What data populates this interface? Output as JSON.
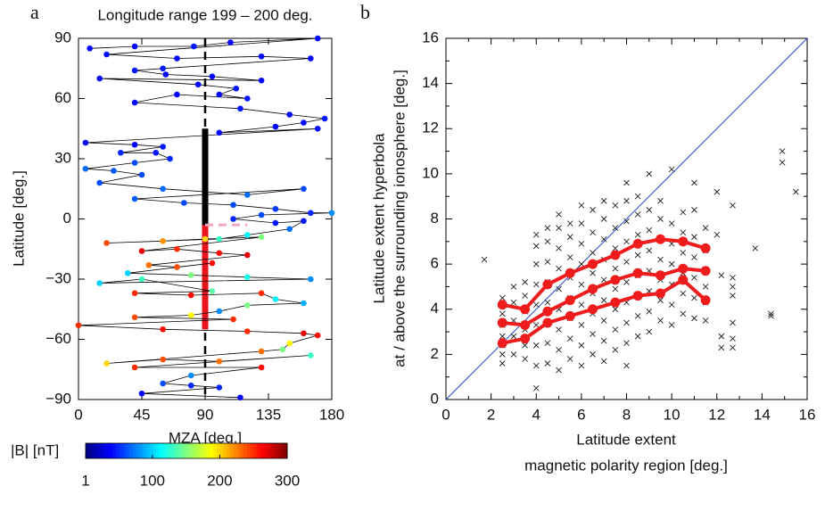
{
  "chart_data": [
    {
      "type": "line",
      "panel": "a",
      "title": "Longitude range 199 – 200 deg.",
      "xlabel": "MZA [deg.]",
      "ylabel": "Latitude [deg.]",
      "xlim": [
        0,
        180
      ],
      "ylim": [
        -90,
        90
      ],
      "xticks": [
        0,
        45,
        90,
        135,
        180
      ],
      "yticks": [
        {
          "value": -90,
          "label": "−90"
        },
        {
          "value": -60,
          "label": "−60"
        },
        {
          "value": -30,
          "label": "−30"
        },
        0,
        30,
        60,
        90
      ],
      "line_color": "#000000",
      "colormap": "jet",
      "colorbar": {
        "label": "|B| [nT]",
        "lim": [
          1,
          300
        ],
        "ticks": [
          1,
          100,
          200,
          300
        ]
      },
      "reference_x": 90,
      "bar_lat": [
        -55,
        45
      ],
      "red_lat": [
        -55,
        -3
      ],
      "red_color": "#e8141c",
      "pink_line": {
        "lat": -3,
        "mza": [
          90,
          120
        ],
        "color": "#f4a6c0"
      },
      "points": [
        [
          8,
          85,
          40
        ],
        [
          40,
          86,
          40
        ],
        [
          82,
          86,
          45
        ],
        [
          108,
          88,
          40
        ],
        [
          170,
          90,
          40
        ],
        [
          20,
          82,
          40
        ],
        [
          70,
          80,
          40
        ],
        [
          130,
          81,
          40
        ],
        [
          165,
          80,
          40
        ],
        [
          60,
          75,
          45
        ],
        [
          40,
          74,
          45
        ],
        [
          62,
          72,
          40
        ],
        [
          95,
          71,
          40
        ],
        [
          130,
          69,
          40
        ],
        [
          15,
          70,
          40
        ],
        [
          85,
          67,
          40
        ],
        [
          112,
          65,
          45
        ],
        [
          100,
          62,
          40
        ],
        [
          120,
          60,
          45
        ],
        [
          70,
          62,
          40
        ],
        [
          40,
          58,
          40
        ],
        [
          115,
          55,
          45
        ],
        [
          150,
          52,
          40
        ],
        [
          175,
          50,
          45
        ],
        [
          160,
          48,
          40
        ],
        [
          140,
          46,
          40
        ],
        [
          100,
          43,
          40
        ],
        [
          170,
          45,
          40
        ],
        [
          5,
          38,
          40
        ],
        [
          40,
          37,
          40
        ],
        [
          60,
          36,
          45
        ],
        [
          30,
          33,
          50
        ],
        [
          55,
          33,
          45
        ],
        [
          65,
          30,
          50
        ],
        [
          40,
          28,
          60
        ],
        [
          5,
          25,
          70
        ],
        [
          25,
          24,
          65
        ],
        [
          45,
          22,
          60
        ],
        [
          15,
          18,
          60
        ],
        [
          60,
          15,
          70
        ],
        [
          120,
          12,
          70
        ],
        [
          160,
          15,
          60
        ],
        [
          40,
          10,
          65
        ],
        [
          75,
          8,
          60
        ],
        [
          110,
          7,
          60
        ],
        [
          140,
          5,
          55
        ],
        [
          165,
          3,
          50
        ],
        [
          180,
          3,
          80
        ],
        [
          130,
          2,
          60
        ],
        [
          110,
          0,
          50
        ],
        [
          140,
          -2,
          45
        ],
        [
          160,
          -1,
          45
        ],
        [
          150,
          -5,
          70
        ],
        [
          120,
          -8,
          110
        ],
        [
          100,
          -10,
          130
        ],
        [
          20,
          -12,
          240
        ],
        [
          60,
          -11,
          220
        ],
        [
          90,
          -10,
          200
        ],
        [
          130,
          -9,
          150
        ],
        [
          45,
          -16,
          270
        ],
        [
          70,
          -15,
          250
        ],
        [
          100,
          -17,
          260
        ],
        [
          120,
          -18,
          270
        ],
        [
          50,
          -23,
          230
        ],
        [
          70,
          -24,
          240
        ],
        [
          95,
          -22,
          260
        ],
        [
          35,
          -27,
          100
        ],
        [
          80,
          -28,
          150
        ],
        [
          120,
          -29,
          120
        ],
        [
          165,
          -30,
          80
        ],
        [
          15,
          -32,
          100
        ],
        [
          45,
          -30,
          130
        ],
        [
          95,
          -36,
          140
        ],
        [
          40,
          -37,
          250
        ],
        [
          80,
          -38,
          260
        ],
        [
          130,
          -37,
          250
        ],
        [
          140,
          -40,
          110
        ],
        [
          160,
          -42,
          90
        ],
        [
          120,
          -43,
          150
        ],
        [
          100,
          -46,
          80
        ],
        [
          80,
          -48,
          190
        ],
        [
          40,
          -49,
          240
        ],
        [
          110,
          -50,
          250
        ],
        [
          0,
          -53,
          250
        ],
        [
          60,
          -55,
          260
        ],
        [
          120,
          -56,
          250
        ],
        [
          160,
          -57,
          270
        ],
        [
          170,
          -58,
          260
        ],
        [
          150,
          -62,
          190
        ],
        [
          145,
          -65,
          150
        ],
        [
          130,
          -66,
          230
        ],
        [
          20,
          -72,
          200
        ],
        [
          60,
          -70,
          240
        ],
        [
          100,
          -71,
          230
        ],
        [
          165,
          -68,
          130
        ],
        [
          40,
          -74,
          250
        ],
        [
          130,
          -74,
          260
        ],
        [
          80,
          -78,
          80
        ],
        [
          60,
          -82,
          60
        ],
        [
          80,
          -83,
          50
        ],
        [
          100,
          -84,
          50
        ],
        [
          45,
          -87,
          40
        ],
        [
          115,
          -89,
          40
        ]
      ]
    },
    {
      "type": "scatter",
      "panel": "b",
      "xlabel": [
        "Latitude extent",
        "magnetic polarity region [deg.]"
      ],
      "ylabel": [
        "Latitude extent hyperbola",
        "at / above the surrounding ionosphere [deg.]"
      ],
      "xlim": [
        0,
        16
      ],
      "ylim": [
        0,
        16
      ],
      "xticks": [
        0,
        2,
        4,
        6,
        8,
        10,
        12,
        14,
        16
      ],
      "yticks": [
        0,
        2,
        4,
        6,
        8,
        10,
        12,
        14,
        16
      ],
      "xminorticks": [
        1,
        3,
        5,
        7,
        9,
        11,
        13,
        15
      ],
      "yminorticks": [
        1,
        3,
        5,
        7,
        9,
        11,
        13,
        15
      ],
      "diagonal": {
        "from": [
          0,
          0
        ],
        "to": [
          16,
          16
        ],
        "color": "#2a4fd0"
      },
      "marker_color": "#222222",
      "points": [
        [
          1.7,
          6.2
        ],
        [
          2.5,
          1.6
        ],
        [
          2.5,
          2.0
        ],
        [
          2.5,
          2.4
        ],
        [
          2.5,
          2.8
        ],
        [
          2.5,
          3.3
        ],
        [
          2.5,
          3.8
        ],
        [
          2.5,
          4.5
        ],
        [
          3.0,
          2.0
        ],
        [
          3.0,
          2.8
        ],
        [
          3.0,
          3.5
        ],
        [
          3.0,
          4.3
        ],
        [
          3.0,
          5.0
        ],
        [
          3.5,
          1.8
        ],
        [
          3.5,
          2.4
        ],
        [
          3.5,
          3.1
        ],
        [
          3.5,
          3.9
        ],
        [
          3.5,
          4.6
        ],
        [
          3.5,
          5.2
        ],
        [
          4.0,
          0.5
        ],
        [
          4.0,
          1.5
        ],
        [
          4.0,
          2.4
        ],
        [
          4.0,
          3.3
        ],
        [
          4.0,
          4.2
        ],
        [
          4.0,
          5.1
        ],
        [
          4.0,
          6.0
        ],
        [
          4.0,
          6.8
        ],
        [
          4.0,
          7.3
        ],
        [
          4.5,
          1.6
        ],
        [
          4.5,
          2.5
        ],
        [
          4.5,
          3.4
        ],
        [
          4.5,
          4.3
        ],
        [
          4.5,
          5.2
        ],
        [
          4.5,
          6.1
        ],
        [
          4.5,
          7.0
        ],
        [
          4.5,
          7.6
        ],
        [
          5.0,
          1.3
        ],
        [
          5.0,
          2.2
        ],
        [
          5.0,
          3.1
        ],
        [
          5.0,
          4.0
        ],
        [
          5.0,
          4.9
        ],
        [
          5.0,
          5.8
        ],
        [
          5.0,
          6.7
        ],
        [
          5.0,
          7.6
        ],
        [
          5.0,
          8.2
        ],
        [
          5.5,
          1.8
        ],
        [
          5.5,
          2.7
        ],
        [
          5.5,
          3.6
        ],
        [
          5.5,
          4.5
        ],
        [
          5.5,
          5.4
        ],
        [
          5.5,
          6.3
        ],
        [
          5.5,
          7.2
        ],
        [
          5.5,
          7.8
        ],
        [
          6.0,
          1.5
        ],
        [
          6.0,
          2.4
        ],
        [
          6.0,
          3.3
        ],
        [
          6.0,
          4.2
        ],
        [
          6.0,
          5.1
        ],
        [
          6.0,
          6.0
        ],
        [
          6.0,
          6.9
        ],
        [
          6.0,
          7.8
        ],
        [
          6.0,
          8.6
        ],
        [
          6.5,
          2.0
        ],
        [
          6.5,
          2.9
        ],
        [
          6.5,
          3.8
        ],
        [
          6.5,
          4.7
        ],
        [
          6.5,
          5.6
        ],
        [
          6.5,
          6.5
        ],
        [
          6.5,
          7.4
        ],
        [
          6.5,
          8.4
        ],
        [
          7.0,
          1.7
        ],
        [
          7.0,
          2.6
        ],
        [
          7.0,
          3.5
        ],
        [
          7.0,
          4.4
        ],
        [
          7.0,
          5.3
        ],
        [
          7.0,
          6.2
        ],
        [
          7.0,
          7.1
        ],
        [
          7.0,
          8.0
        ],
        [
          7.0,
          8.8
        ],
        [
          7.5,
          2.2
        ],
        [
          7.5,
          3.1
        ],
        [
          7.5,
          4.0
        ],
        [
          7.5,
          4.9
        ],
        [
          7.5,
          5.8
        ],
        [
          7.5,
          6.7
        ],
        [
          7.5,
          7.6
        ],
        [
          7.5,
          8.6
        ],
        [
          8.0,
          1.5
        ],
        [
          8.0,
          2.5
        ],
        [
          8.0,
          3.4
        ],
        [
          8.0,
          4.3
        ],
        [
          8.0,
          5.2
        ],
        [
          8.0,
          6.1
        ],
        [
          8.0,
          7.0
        ],
        [
          8.0,
          7.9
        ],
        [
          8.0,
          8.8
        ],
        [
          8.0,
          9.6
        ],
        [
          8.5,
          2.8
        ],
        [
          8.5,
          3.7
        ],
        [
          8.5,
          4.6
        ],
        [
          8.5,
          5.5
        ],
        [
          8.5,
          6.4
        ],
        [
          8.5,
          7.3
        ],
        [
          8.5,
          8.2
        ],
        [
          8.5,
          9.0
        ],
        [
          9.0,
          3.0
        ],
        [
          9.0,
          3.9
        ],
        [
          9.0,
          4.8
        ],
        [
          9.0,
          5.7
        ],
        [
          9.0,
          6.6
        ],
        [
          9.0,
          7.5
        ],
        [
          9.0,
          8.4
        ],
        [
          9.0,
          10.0
        ],
        [
          9.5,
          3.5
        ],
        [
          9.5,
          4.4
        ],
        [
          9.5,
          5.3
        ],
        [
          9.5,
          6.2
        ],
        [
          9.5,
          7.1
        ],
        [
          9.5,
          8.0
        ],
        [
          9.5,
          8.8
        ],
        [
          10.0,
          3.3
        ],
        [
          10.0,
          4.2
        ],
        [
          10.0,
          5.1
        ],
        [
          10.0,
          6.0
        ],
        [
          10.0,
          6.9
        ],
        [
          10.0,
          7.8
        ],
        [
          10.0,
          10.2
        ],
        [
          10.5,
          3.8
        ],
        [
          10.5,
          4.7
        ],
        [
          10.5,
          5.6
        ],
        [
          10.5,
          6.5
        ],
        [
          10.5,
          7.4
        ],
        [
          10.5,
          8.3
        ],
        [
          11.0,
          3.6
        ],
        [
          11.0,
          4.5
        ],
        [
          11.0,
          5.4
        ],
        [
          11.0,
          6.3
        ],
        [
          11.0,
          7.2
        ],
        [
          11.0,
          8.4
        ],
        [
          11.0,
          9.6
        ],
        [
          11.5,
          3.5
        ],
        [
          11.5,
          4.3
        ],
        [
          11.5,
          5.0
        ],
        [
          11.5,
          5.7
        ],
        [
          11.5,
          6.6
        ],
        [
          11.5,
          7.6
        ],
        [
          12.0,
          7.3
        ],
        [
          12.0,
          9.2
        ],
        [
          12.2,
          2.3
        ],
        [
          12.2,
          2.8
        ],
        [
          12.2,
          5.5
        ],
        [
          12.7,
          2.3
        ],
        [
          12.7,
          2.7
        ],
        [
          12.7,
          3.4
        ],
        [
          12.7,
          4.6
        ],
        [
          12.7,
          5.0
        ],
        [
          12.7,
          5.4
        ],
        [
          12.7,
          8.6
        ],
        [
          13.7,
          6.7
        ],
        [
          14.4,
          3.7
        ],
        [
          14.4,
          3.8
        ],
        [
          14.9,
          10.5
        ],
        [
          14.9,
          11.0
        ],
        [
          15.5,
          9.2
        ]
      ],
      "x": [
        2.5,
        3.5,
        4.5,
        5.5,
        6.5,
        7.5,
        8.5,
        9.5,
        10.5,
        11.5
      ],
      "series": [
        {
          "color": "#ee1c1c",
          "values": [
            4.2,
            4.0,
            5.1,
            5.6,
            6.0,
            6.4,
            6.9,
            7.1,
            7.0,
            6.7
          ]
        },
        {
          "color": "#ee1c1c",
          "values": [
            3.4,
            3.3,
            3.9,
            4.4,
            4.9,
            5.3,
            5.6,
            5.5,
            5.8,
            5.7
          ]
        },
        {
          "color": "#ee1c1c",
          "values": [
            2.5,
            2.7,
            3.4,
            3.7,
            4.0,
            4.3,
            4.6,
            4.7,
            5.3,
            4.4
          ]
        }
      ]
    }
  ]
}
